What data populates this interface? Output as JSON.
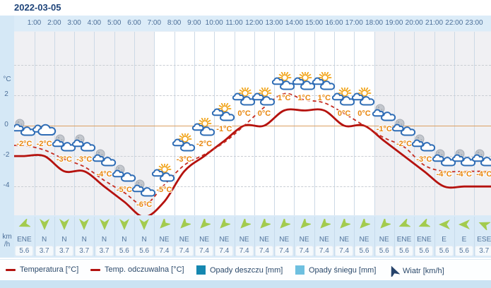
{
  "date": "2022-03-05",
  "yaxis": {
    "unit_label": "°C",
    "tick_labels": [
      "2",
      "0",
      "-2",
      "-4"
    ],
    "tick_values": [
      2,
      0,
      -2,
      -4
    ]
  },
  "wind_unit": {
    "line1": "km",
    "line2": "/h"
  },
  "legend": {
    "items": [
      {
        "label": "Temperatura [°C]",
        "swatch": "line",
        "color": "#b2120f"
      },
      {
        "label": "Temp. odczuwalna [°C]",
        "swatch": "line",
        "color": "#b2120f"
      },
      {
        "label": "Opady deszczu [mm]",
        "swatch": "square",
        "color": "#1487b0"
      },
      {
        "label": "Opady śniegu [mm]",
        "swatch": "square",
        "color": "#6ec0e0"
      },
      {
        "label": "Wiatr [km/h]",
        "swatch": "arrow",
        "color": "#26436b"
      }
    ]
  },
  "chart_data": {
    "type": "line",
    "title": "2022-03-05",
    "hour_labels": [
      "1:00",
      "2:00",
      "3:00",
      "4:00",
      "5:00",
      "6:00",
      "7:00",
      "8:00",
      "9:00",
      "10:00",
      "11:00",
      "12:00",
      "13:00",
      "14:00",
      "15:00",
      "16:00",
      "17:00",
      "18:00",
      "19:00",
      "20:00",
      "21:00",
      "22:00",
      "23:00"
    ],
    "ylim": [
      -6.2,
      6.2
    ],
    "grid": true,
    "zero_line_color": "#dda060",
    "day_hours_span": [
      7,
      18
    ],
    "series": [
      {
        "name": "Temperatura [°C]",
        "style": "solid",
        "color": "#b5120e",
        "values": [
          -2,
          -2,
          -3,
          -3,
          -4,
          -5,
          -6,
          -5,
          -3,
          -2,
          -1,
          0,
          0,
          1,
          1,
          1,
          0,
          0,
          -1,
          -2,
          -3,
          -4,
          -4,
          -4
        ]
      },
      {
        "name": "Temp. odczuwalna [°C]",
        "style": "dashed",
        "color": "#c62b1f",
        "values": [
          -1.3,
          -1.6,
          -2.2,
          -2.7,
          -3.6,
          -4.4,
          -5.2,
          -3.9,
          -2.6,
          -1.9,
          -1.1,
          0,
          1.2,
          2.1,
          1.7,
          1.5,
          0.8,
          0,
          -0.8,
          -1.4,
          -2.6,
          -3,
          -3,
          -3
        ]
      }
    ],
    "point_labels": [
      "-2°C",
      "-2°C",
      "-3°C",
      "-3°C",
      "-4°C",
      "-5°C",
      "-6°C",
      "-5°C",
      "-3°C",
      "-2°C",
      "-1°C",
      "0°C",
      "0°C",
      "1°C",
      "1°C",
      "1°C",
      "0°C",
      "0°C",
      "-1°C",
      "-2°C",
      "-3°C",
      "-4°C",
      "-4°C",
      "-4°C"
    ],
    "icons": [
      "night-clouds",
      "clouds",
      "night-clouds",
      "night-clouds",
      "night-clouds",
      "night-clouds",
      "night-clouds",
      "sun-clouds",
      "sun-clouds",
      "sun-clouds",
      "sun-clouds",
      "sun-clouds",
      "sun-clouds",
      "sun-clouds",
      "sun-clouds",
      "sun-clouds",
      "sun-clouds",
      "sun-clouds",
      "night-clouds",
      "night-clouds",
      "night-clouds",
      "night-clouds",
      "night-clouds",
      "night-clouds"
    ],
    "wind": {
      "directions": [
        "ENE",
        "N",
        "N",
        "N",
        "N",
        "N",
        "N",
        "NE",
        "NE",
        "NE",
        "NE",
        "NE",
        "NE",
        "NE",
        "NE",
        "NE",
        "NE",
        "NE",
        "NE",
        "ENE",
        "ENE",
        "E",
        "E",
        "ESE"
      ],
      "speeds": [
        "5.6",
        "3.7",
        "3.7",
        "3.7",
        "3.7",
        "5.6",
        "5.6",
        "7.4",
        "7.4",
        "7.4",
        "7.4",
        "7.4",
        "7.4",
        "7.4",
        "7.4",
        "7.4",
        "7.4",
        "5.6",
        "5.6",
        "5.6",
        "5.6",
        "5.6",
        "5.6",
        "3.7"
      ],
      "arrow_color": "#a3cb4e"
    }
  }
}
